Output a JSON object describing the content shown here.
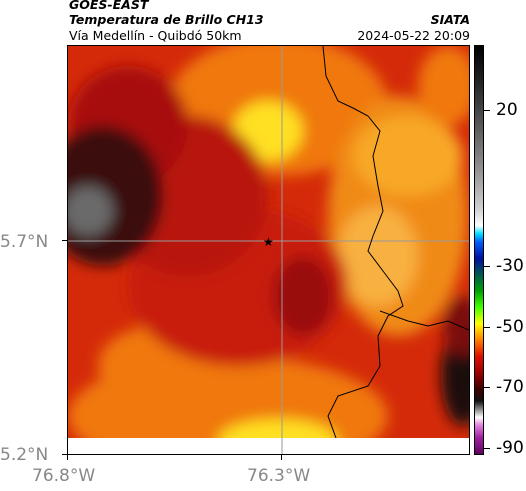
{
  "header": {
    "satellite": "GOES-EAST",
    "product": "Temperatura de Brillo CH13",
    "region": "Vía Medellín - Quibdó 50km",
    "org": "SIATA",
    "datetime": "2024-05-22 20:09"
  },
  "axes": {
    "lon_labels": [
      "76.8°W",
      "76.3°W"
    ],
    "lat_labels": [
      "5.7°N",
      "5.2°N"
    ]
  },
  "colorbar": {
    "labels": [
      "20",
      "-30",
      "-50",
      "-70",
      "-90"
    ],
    "values": [
      20,
      -30,
      -50,
      -70,
      -90
    ],
    "range": [
      -95,
      35
    ]
  },
  "colors": {
    "dark": "#3a0a0a",
    "deep_red": "#9a0c08",
    "red": "#c81a0a",
    "orange_red": "#e03c0c",
    "orange": "#f07810",
    "light_orange": "#f8a020",
    "yellow": "#ffe020"
  },
  "marker": {
    "icon": "star-icon"
  }
}
